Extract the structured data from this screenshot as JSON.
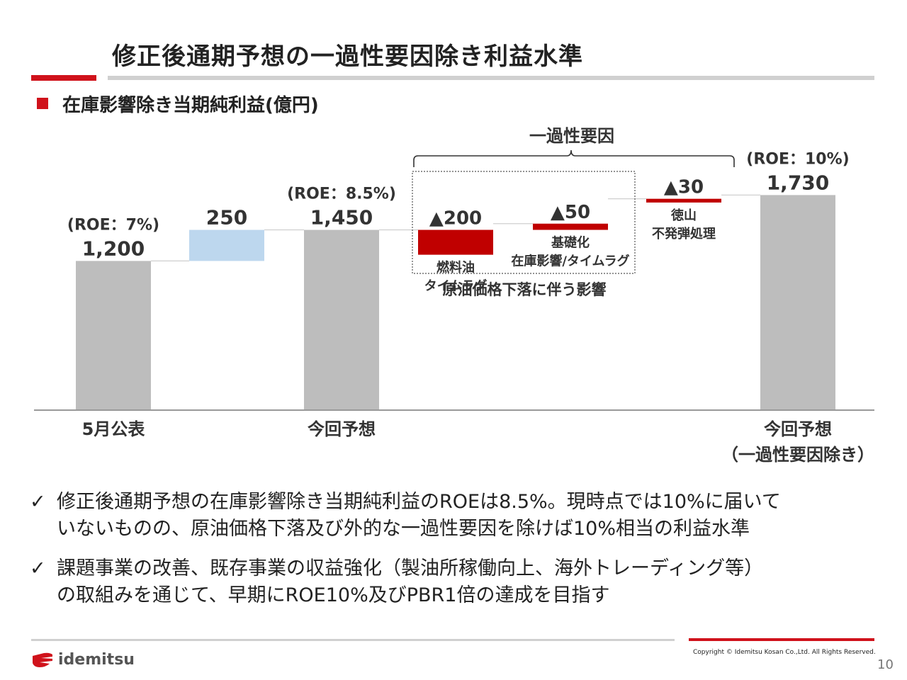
{
  "header": {
    "title": "修正後通期予想の一過性要因除き利益水準"
  },
  "section": {
    "title": "在庫影響除き当期純利益(億円)"
  },
  "chart_data": {
    "type": "bar",
    "subtype": "waterfall",
    "categories": [
      "5月公表",
      "",
      "今回予想",
      "",
      "",
      "",
      "今回予想（一過性要因除き）"
    ],
    "bars": [
      {
        "label": "1,200",
        "value": 1200,
        "base": 0,
        "kind": "total",
        "roe": "(ROE：7%)",
        "category_label": "5月公表"
      },
      {
        "label": "250",
        "value": 250,
        "base": 1200,
        "kind": "increase"
      },
      {
        "label": "1,450",
        "value": 1450,
        "base": 0,
        "kind": "total",
        "roe": "(ROE：8.5%)",
        "category_label": "今回予想"
      },
      {
        "label": "▲200",
        "value": -200,
        "base": 1450,
        "kind": "decrease",
        "desc": [
          "燃料油",
          "タイムラグ"
        ]
      },
      {
        "label": "▲50",
        "value": -50,
        "base": 1500,
        "kind": "decrease",
        "desc": [
          "基礎化",
          "在庫影響/タイムラグ"
        ]
      },
      {
        "label": "▲30",
        "value": -30,
        "base": 1700,
        "kind": "decrease",
        "desc": [
          "徳山",
          "不発弾処理"
        ]
      },
      {
        "label": "1,730",
        "value": 1730,
        "base": 0,
        "kind": "total",
        "roe": "(ROE：10%)",
        "category_label": [
          "今回予想",
          "（一過性要因除き）"
        ]
      }
    ],
    "annotations": {
      "bracket_label": "一過性要因",
      "group_label": "原油価格下落に伴う影響"
    },
    "colors": {
      "total": "#bdbdbd",
      "increase": "#bdd7ee",
      "decrease": "#c00000"
    }
  },
  "bullets": [
    {
      "lines": [
        "修正後通期予想の在庫影響除き当期純利益のROEは8.5%。現時点では10%に届いて",
        "いないものの、原油価格下落及び外的な一過性要因を除けば10%相当の利益水準"
      ]
    },
    {
      "lines": [
        "課題事業の改善、既存事業の収益強化（製油所稼働向上、海外トレーディング等）",
        "の取組みを通じて、早期にROE10%及びPBR1倍の達成を目指す"
      ]
    }
  ],
  "bullet_icon": "check-icon",
  "footer": {
    "brand": "idemitsu",
    "copyright": "Copyright © Idemitsu Kosan Co.,Ltd.  All Rights Reserved.",
    "page": "10"
  }
}
